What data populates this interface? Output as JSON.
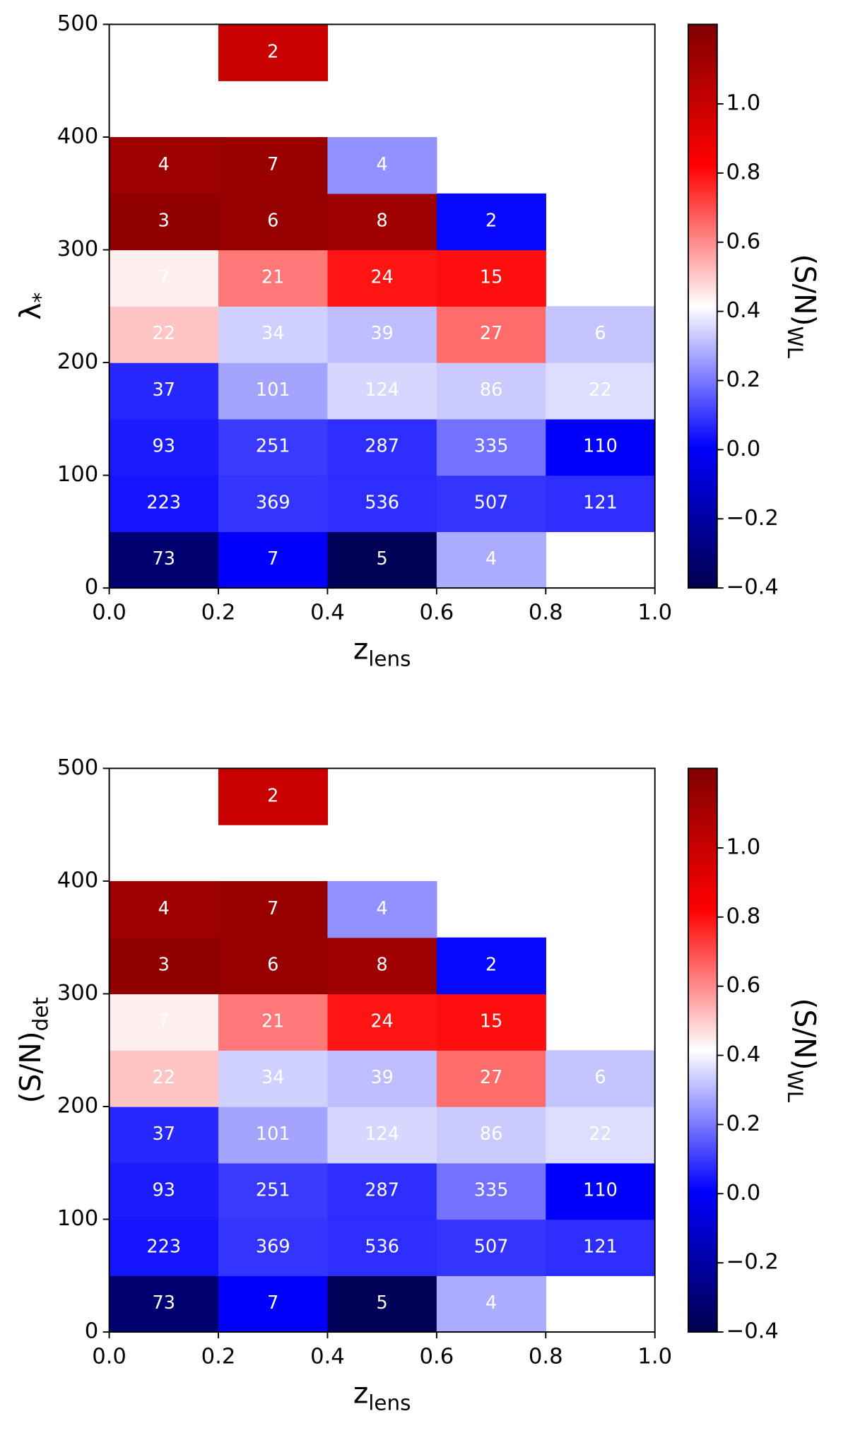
{
  "chart_data": [
    {
      "type": "heatmap",
      "xlabel": {
        "text": "z",
        "subscript": "lens"
      },
      "ylabel": {
        "text": "λ",
        "subscript": "*"
      },
      "colorbar_label": {
        "text": "(S/N)",
        "subscript": "WL"
      },
      "x_bins": [
        0,
        0.2,
        0.4,
        0.6,
        0.8,
        1
      ],
      "y_bins": [
        0,
        50,
        100,
        150,
        200,
        250,
        300,
        350,
        400,
        450,
        500
      ],
      "xlim": [
        0,
        1
      ],
      "ylim": [
        0,
        500
      ],
      "xticks": [
        {
          "value": 0,
          "label": "0.0"
        },
        0.2,
        0.4,
        0.6,
        0.8,
        {
          "value": 1,
          "label": "1.0"
        }
      ],
      "yticks": [
        0,
        100,
        200,
        300,
        400,
        500
      ],
      "colormap": "seismic",
      "clim": [
        -0.4,
        1.23
      ],
      "cticks": [
        {
          "value": -0.4,
          "label": "−0.4"
        },
        {
          "value": -0.2,
          "label": "−0.2"
        },
        {
          "value": 0,
          "label": "0.0"
        },
        0.2,
        0.4,
        0.6,
        0.8,
        {
          "value": 1,
          "label": "1.0"
        }
      ],
      "values": [
        [
          -0.32,
          0.0,
          -0.38,
          0.28,
          null
        ],
        [
          0.04,
          0.09,
          0.08,
          0.09,
          0.08
        ],
        [
          0.05,
          0.1,
          0.08,
          0.19,
          0.0
        ],
        [
          0.07,
          0.27,
          0.35,
          0.33,
          0.36
        ],
        [
          0.51,
          0.34,
          0.31,
          0.65,
          0.32
        ],
        [
          0.44,
          0.63,
          0.79,
          0.8,
          null
        ],
        [
          1.18,
          1.16,
          1.13,
          0.02,
          null
        ],
        [
          1.14,
          1.15,
          0.24,
          null,
          null
        ],
        [
          null,
          null,
          null,
          null,
          null
        ],
        [
          null,
          1.0,
          null,
          null,
          null
        ]
      ],
      "counts": [
        [
          73,
          7,
          5,
          4,
          null
        ],
        [
          223,
          369,
          536,
          507,
          121
        ],
        [
          93,
          251,
          287,
          335,
          110
        ],
        [
          37,
          101,
          124,
          86,
          22
        ],
        [
          22,
          34,
          39,
          27,
          6
        ],
        [
          7,
          21,
          24,
          15,
          null
        ],
        [
          3,
          6,
          8,
          2,
          null
        ],
        [
          4,
          7,
          4,
          null,
          null
        ],
        [
          null,
          null,
          null,
          null,
          null
        ],
        [
          null,
          2,
          null,
          null,
          null
        ]
      ]
    },
    {
      "type": "heatmap",
      "xlabel": {
        "text": "z",
        "subscript": "lens"
      },
      "ylabel": {
        "text": "(S/N)",
        "subscript": "det"
      },
      "colorbar_label": {
        "text": "(S/N)",
        "subscript": "WL"
      },
      "x_bins": [
        0,
        0.2,
        0.4,
        0.6,
        0.8,
        1
      ],
      "y_bins": [
        0,
        50,
        100,
        150,
        200,
        250,
        300,
        350,
        400,
        450,
        500
      ],
      "xlim": [
        0,
        1
      ],
      "ylim": [
        0,
        500
      ],
      "xticks": [
        {
          "value": 0,
          "label": "0.0"
        },
        0.2,
        0.4,
        0.6,
        0.8,
        {
          "value": 1,
          "label": "1.0"
        }
      ],
      "yticks": [
        0,
        100,
        200,
        300,
        400,
        500
      ],
      "colormap": "seismic",
      "clim": [
        -0.4,
        1.23
      ],
      "cticks": [
        {
          "value": -0.4,
          "label": "−0.4"
        },
        {
          "value": -0.2,
          "label": "−0.2"
        },
        {
          "value": 0,
          "label": "0.0"
        },
        0.2,
        0.4,
        0.6,
        0.8,
        {
          "value": 1,
          "label": "1.0"
        }
      ],
      "values": [
        [
          -0.32,
          0.0,
          -0.38,
          0.28,
          null
        ],
        [
          0.04,
          0.09,
          0.08,
          0.09,
          0.08
        ],
        [
          0.05,
          0.1,
          0.08,
          0.19,
          0.0
        ],
        [
          0.07,
          0.27,
          0.35,
          0.33,
          0.36
        ],
        [
          0.51,
          0.34,
          0.31,
          0.65,
          0.32
        ],
        [
          0.44,
          0.63,
          0.79,
          0.8,
          null
        ],
        [
          1.18,
          1.16,
          1.13,
          0.02,
          null
        ],
        [
          1.14,
          1.15,
          0.24,
          null,
          null
        ],
        [
          null,
          null,
          null,
          null,
          null
        ],
        [
          null,
          1.0,
          null,
          null,
          null
        ]
      ],
      "counts": [
        [
          73,
          7,
          5,
          4,
          null
        ],
        [
          223,
          369,
          536,
          507,
          121
        ],
        [
          93,
          251,
          287,
          335,
          110
        ],
        [
          37,
          101,
          124,
          86,
          22
        ],
        [
          22,
          34,
          39,
          27,
          6
        ],
        [
          7,
          21,
          24,
          15,
          null
        ],
        [
          3,
          6,
          8,
          2,
          null
        ],
        [
          4,
          7,
          4,
          null,
          null
        ],
        [
          null,
          null,
          null,
          null,
          null
        ],
        [
          null,
          2,
          null,
          null,
          null
        ]
      ]
    }
  ]
}
